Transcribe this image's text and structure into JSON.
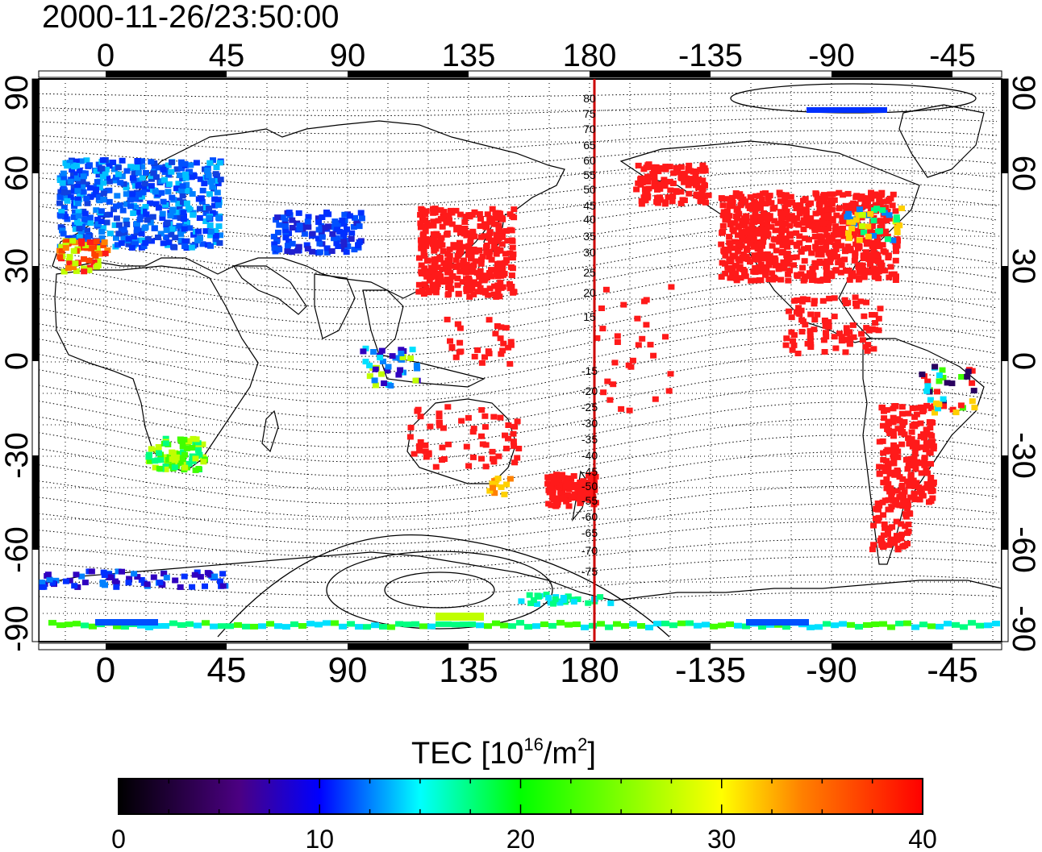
{
  "title": "2000-11-26/23:50:00",
  "map": {
    "lon_labels": [
      "0",
      "45",
      "90",
      "135",
      "180",
      "-135",
      "-90",
      "-45"
    ],
    "lat_labels": [
      "90",
      "60",
      "30",
      "0",
      "-30",
      "-60",
      "-90"
    ],
    "mlat_north": [
      "80",
      "75",
      "70",
      "65",
      "60",
      "55",
      "50",
      "45",
      "40",
      "35",
      "30",
      "25",
      "20",
      "15"
    ],
    "mlat_south": [
      "-15",
      "-20",
      "-25",
      "-30",
      "-35",
      "-40",
      "-45",
      "-50",
      "-55",
      "-60",
      "-65",
      "-70",
      "-75"
    ]
  },
  "colorbar": {
    "label_main": "TEC  [10",
    "label_sup1": "16",
    "label_mid": "/m",
    "label_sup2": "2",
    "label_end": "]",
    "tick_labels": [
      "0",
      "10",
      "20",
      "30",
      "40"
    ],
    "min": 0,
    "max": 40,
    "colormap": [
      "#000000",
      "#4b0082",
      "#0000ff",
      "#00ffff",
      "#00ff00",
      "#ffff00",
      "#ff0000"
    ]
  },
  "colors": {
    "meridian_line": "#cc0000",
    "high_tec": "#ff1a1a"
  }
}
